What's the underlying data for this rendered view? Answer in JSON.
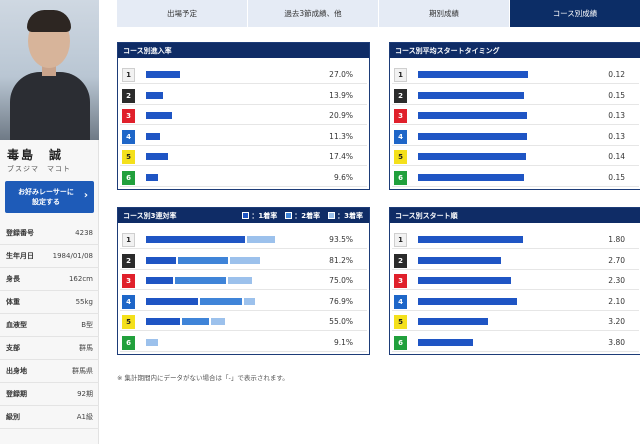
{
  "racer": {
    "name": "毒島　誠",
    "kana": "ブスジマ　マコト",
    "fav_button": "お好みレーサーに\n設定する",
    "profile": [
      {
        "key": "登録番号",
        "value": "4238"
      },
      {
        "key": "生年月日",
        "value": "1984/01/08"
      },
      {
        "key": "身長",
        "value": "162cm"
      },
      {
        "key": "体重",
        "value": "55kg"
      },
      {
        "key": "血液型",
        "value": "B型"
      },
      {
        "key": "支部",
        "value": "群馬"
      },
      {
        "key": "出身地",
        "value": "群馬県"
      },
      {
        "key": "登録期",
        "value": "92期"
      },
      {
        "key": "級別",
        "value": "A1級"
      }
    ]
  },
  "tabs": [
    {
      "label": "出場予定",
      "active": false
    },
    {
      "label": "過去3節成績、他",
      "active": false
    },
    {
      "label": "期別成績",
      "active": false
    },
    {
      "label": "コース別成績",
      "active": true
    }
  ],
  "lane_colors": {
    "1": {
      "bg": "#f2f2f2",
      "fg": "#222222"
    },
    "2": {
      "bg": "#2b2b2b",
      "fg": "#ffffff"
    },
    "3": {
      "bg": "#e0202b",
      "fg": "#ffffff"
    },
    "4": {
      "bg": "#1e66c8",
      "fg": "#ffffff"
    },
    "5": {
      "bg": "#f4e01b",
      "fg": "#222222"
    },
    "6": {
      "bg": "#21a03c",
      "fg": "#ffffff"
    }
  },
  "bar_colors": {
    "primary": "#1f55c4",
    "second": "#3f84d8",
    "third": "#9cc1ec"
  },
  "panels": {
    "entry_rate": {
      "title": "コース別進入率",
      "rows": [
        {
          "lane": "1",
          "pct": 27.0,
          "label": "27.0%"
        },
        {
          "lane": "2",
          "pct": 13.9,
          "label": "13.9%"
        },
        {
          "lane": "3",
          "pct": 20.9,
          "label": "20.9%"
        },
        {
          "lane": "4",
          "pct": 11.3,
          "label": "11.3%"
        },
        {
          "lane": "5",
          "pct": 17.4,
          "label": "17.4%"
        },
        {
          "lane": "6",
          "pct": 9.6,
          "label": "9.6%"
        }
      ]
    },
    "start_timing": {
      "title": "コース別平均スタートタイミング",
      "rows": [
        {
          "lane": "1",
          "fill": 0.88,
          "label": "0.12"
        },
        {
          "lane": "2",
          "fill": 0.85,
          "label": "0.15"
        },
        {
          "lane": "3",
          "fill": 0.87,
          "label": "0.13"
        },
        {
          "lane": "4",
          "fill": 0.87,
          "label": "0.13"
        },
        {
          "lane": "5",
          "fill": 0.86,
          "label": "0.14"
        },
        {
          "lane": "6",
          "fill": 0.85,
          "label": "0.15"
        }
      ]
    },
    "top3_rate": {
      "title": "コース別3連対率",
      "legend": [
        "：1着率",
        "：2着率",
        "：3着率"
      ],
      "rows": [
        {
          "lane": "1",
          "first": 73.0,
          "second": 0.0,
          "third": 20.5,
          "label": "93.5%"
        },
        {
          "lane": "2",
          "first": 22.0,
          "second": 37.0,
          "third": 22.2,
          "label": "81.2%"
        },
        {
          "lane": "3",
          "first": 20.0,
          "second": 37.0,
          "third": 18.0,
          "label": "75.0%"
        },
        {
          "lane": "4",
          "first": 38.0,
          "second": 31.0,
          "third": 7.9,
          "label": "76.9%"
        },
        {
          "lane": "5",
          "first": 25.0,
          "second": 20.0,
          "third": 10.0,
          "label": "55.0%"
        },
        {
          "lane": "6",
          "first": 0.0,
          "second": 0.0,
          "third": 9.1,
          "label": "9.1%"
        }
      ]
    },
    "start_order": {
      "title": "コース別スタート順",
      "rows": [
        {
          "lane": "1",
          "fill": 0.82,
          "label": "1.80"
        },
        {
          "lane": "2",
          "fill": 0.65,
          "label": "2.70"
        },
        {
          "lane": "3",
          "fill": 0.73,
          "label": "2.30"
        },
        {
          "lane": "4",
          "fill": 0.77,
          "label": "2.10"
        },
        {
          "lane": "5",
          "fill": 0.55,
          "label": "3.20"
        },
        {
          "lane": "6",
          "fill": 0.43,
          "label": "3.80"
        }
      ]
    }
  },
  "note": "※ 集計期間内にデータがない場合は「-」で表示されます。"
}
